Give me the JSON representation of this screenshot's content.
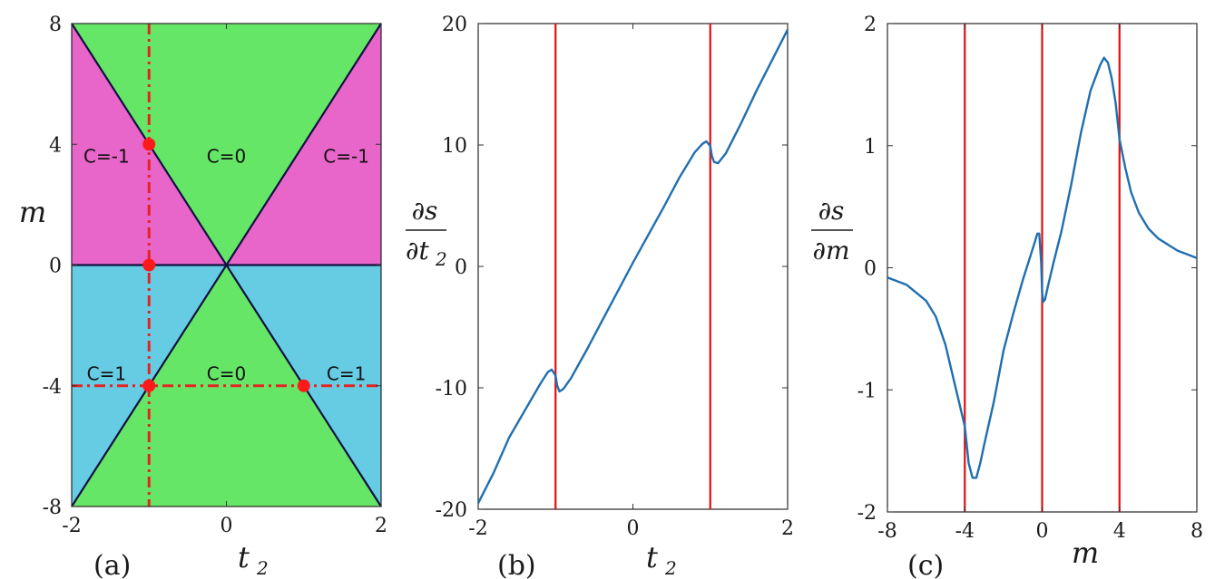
{
  "chart_data": [
    {
      "type": "phase-diagram",
      "panel_label": "(a)",
      "xlabel": "t",
      "xlabel_sub": "2",
      "ylabel": "m",
      "xlim": [
        -2,
        2
      ],
      "ylim": [
        -8,
        8
      ],
      "xticks": [
        "-2",
        "0",
        "2"
      ],
      "yticks": [
        "8",
        "4",
        "0",
        "-4",
        "-8"
      ],
      "xtick_values": [
        -2,
        0,
        2
      ],
      "ytick_values": [
        8,
        4,
        0,
        -4,
        -8
      ],
      "regions": [
        {
          "label": "C=-1",
          "x": -1.55,
          "y": 3.6
        },
        {
          "label": "C=0",
          "x": 0.0,
          "y": 3.6
        },
        {
          "label": "C=-1",
          "x": 1.55,
          "y": 3.6
        },
        {
          "label": "C=1",
          "x": -1.55,
          "y": -3.6
        },
        {
          "label": "C=0",
          "x": 0.0,
          "y": -3.6
        },
        {
          "label": "C=1",
          "x": 1.55,
          "y": -3.6
        }
      ],
      "phase_boundaries": [
        "m = 4 t2",
        "m = -4 t2",
        "m = 0"
      ],
      "cut_lines": {
        "vertical_t2": -1,
        "horizontal_m": -4
      },
      "marked_points": [
        [
          -1,
          4
        ],
        [
          -1,
          0
        ],
        [
          -1,
          -4
        ],
        [
          1,
          -4
        ]
      ],
      "colors": {
        "c_minus1": "#e865c9",
        "c_zero": "#66e666",
        "c_plus1": "#66cce3",
        "boundary": "#101040",
        "cut": "#e52222",
        "point": "#ff1a1a"
      }
    },
    {
      "type": "line",
      "panel_label": "(b)",
      "xlabel": "t",
      "xlabel_sub": "2",
      "ylabel_num": "∂s",
      "ylabel_den": "∂t",
      "ylabel_den_sub": "2",
      "xlim": [
        -2,
        2
      ],
      "ylim": [
        -20,
        20
      ],
      "xticks": [
        "-2",
        "0",
        "2"
      ],
      "yticks": [
        "20",
        "10",
        "0",
        "-10",
        "-20"
      ],
      "xtick_values": [
        -2,
        0,
        2
      ],
      "ytick_values": [
        20,
        10,
        0,
        -10,
        -20
      ],
      "x": [
        -2.0,
        -1.8,
        -1.6,
        -1.4,
        -1.2,
        -1.1,
        -1.05,
        -1.0,
        -0.98,
        -0.95,
        -0.9,
        -0.8,
        -0.6,
        -0.4,
        -0.2,
        0.0,
        0.2,
        0.4,
        0.6,
        0.8,
        0.9,
        0.95,
        1.0,
        1.02,
        1.05,
        1.1,
        1.2,
        1.4,
        1.6,
        1.8,
        2.0
      ],
      "y": [
        -19.5,
        -17.0,
        -14.1,
        -11.9,
        -9.7,
        -8.7,
        -8.5,
        -9.0,
        -9.8,
        -10.3,
        -10.1,
        -9.2,
        -6.9,
        -4.5,
        -2.1,
        0.3,
        2.6,
        4.9,
        7.3,
        9.4,
        10.1,
        10.3,
        9.9,
        9.1,
        8.6,
        8.5,
        9.3,
        11.8,
        14.5,
        17.0,
        19.5
      ],
      "vlines": [
        -1,
        1
      ],
      "colors": {
        "line": "#1f6fb0",
        "vline": "#e01010"
      }
    },
    {
      "type": "line",
      "panel_label": "(c)",
      "xlabel": "m",
      "ylabel_num": "∂s",
      "ylabel_den": "∂m",
      "xlim": [
        -8,
        8
      ],
      "ylim": [
        -2,
        2
      ],
      "xticks": [
        "-8",
        "-4",
        "0",
        "4",
        "8"
      ],
      "yticks": [
        "2",
        "1",
        "0",
        "-1",
        "-2"
      ],
      "xtick_values": [
        -8,
        -4,
        0,
        4,
        8
      ],
      "ytick_values": [
        2,
        1,
        0,
        -1,
        -2
      ],
      "x": [
        -8.0,
        -7.0,
        -6.0,
        -5.5,
        -5.0,
        -4.6,
        -4.3,
        -4.0,
        -3.8,
        -3.6,
        -3.4,
        -3.2,
        -3.0,
        -2.5,
        -2.0,
        -1.5,
        -1.0,
        -0.7,
        -0.4,
        -0.25,
        -0.15,
        -0.05,
        0.0,
        0.05,
        0.15,
        0.3,
        0.6,
        1.0,
        1.5,
        2.0,
        2.5,
        3.0,
        3.2,
        3.4,
        3.6,
        3.8,
        4.0,
        4.3,
        4.6,
        5.0,
        5.5,
        6.0,
        7.0,
        8.0
      ],
      "y": [
        -0.08,
        -0.14,
        -0.27,
        -0.4,
        -0.63,
        -0.9,
        -1.1,
        -1.3,
        -1.6,
        -1.72,
        -1.72,
        -1.6,
        -1.45,
        -1.1,
        -0.68,
        -0.38,
        -0.1,
        0.05,
        0.2,
        0.28,
        0.28,
        0.05,
        -0.2,
        -0.28,
        -0.26,
        -0.15,
        0.05,
        0.3,
        0.68,
        1.1,
        1.45,
        1.66,
        1.72,
        1.68,
        1.55,
        1.35,
        1.05,
        0.82,
        0.62,
        0.45,
        0.32,
        0.24,
        0.14,
        0.08
      ],
      "vlines": [
        -4,
        0,
        4
      ],
      "colors": {
        "line": "#1f6fb0",
        "vline": "#e01010"
      }
    }
  ]
}
